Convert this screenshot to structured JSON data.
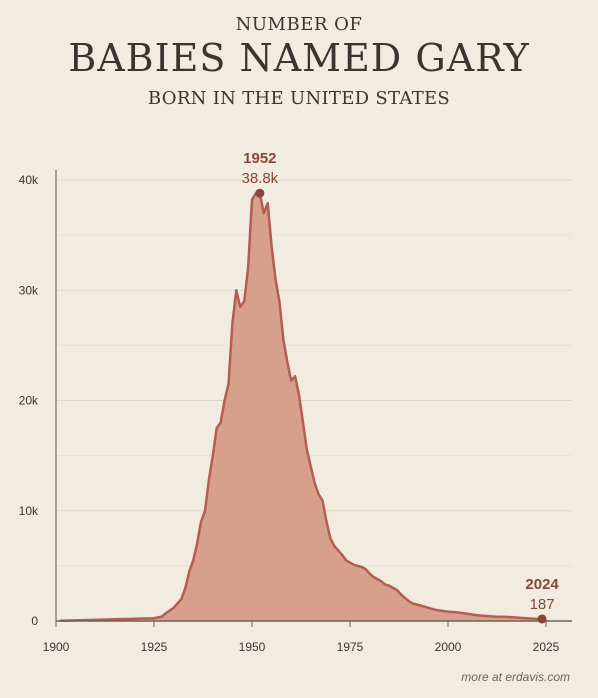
{
  "title": {
    "pre": "NUMBER OF",
    "main": "BABIES NAMED GARY",
    "sub": "BORN IN THE UNITED STATES"
  },
  "credit": "more at erdavis.com",
  "colors": {
    "background": "#f2ebdf",
    "area_fill": "#d7a08c",
    "line": "#b45d50",
    "annotation": "#8a453a",
    "grid": "#ddd5c9"
  },
  "chart_data": {
    "type": "area",
    "title": "NUMBER OF BABIES NAMED GARY BORN IN THE UNITED STATES",
    "xlabel": "",
    "ylabel": "",
    "xlim": [
      1900,
      2030
    ],
    "ylim": [
      0,
      40000
    ],
    "grid": true,
    "x_ticks": [
      1900,
      1925,
      1950,
      1975,
      2000,
      2025
    ],
    "x_tick_labels": [
      "1900",
      "1925",
      "1950",
      "1975",
      "2000",
      "2025"
    ],
    "y_ticks": [
      0,
      10000,
      20000,
      30000,
      40000
    ],
    "y_tick_labels": [
      "0",
      "10k",
      "20k",
      "30k",
      "40k"
    ],
    "series": [
      {
        "x": [
          1901,
          1905,
          1910,
          1915,
          1920,
          1925,
          1927,
          1928,
          1930,
          1932,
          1933,
          1934,
          1935,
          1936,
          1937,
          1938,
          1939,
          1940,
          1941,
          1942,
          1943,
          1944,
          1945,
          1946,
          1947,
          1948,
          1949,
          1950,
          1951,
          1952,
          1953,
          1954,
          1955,
          1956,
          1957,
          1958,
          1959,
          1960,
          1961,
          1962,
          1963,
          1964,
          1965,
          1966,
          1967,
          1968,
          1969,
          1970,
          1971,
          1972,
          1973,
          1974,
          1975,
          1976,
          1977,
          1978,
          1979,
          1980,
          1981,
          1982,
          1983,
          1984,
          1985,
          1986,
          1987,
          1988,
          1989,
          1990,
          1991,
          1992,
          1993,
          1994,
          1995,
          1996,
          1997,
          1998,
          1999,
          2000,
          2002,
          2004,
          2006,
          2008,
          2010,
          2012,
          2014,
          2016,
          2018,
          2020,
          2022,
          2024
        ],
        "y": [
          30,
          50,
          100,
          150,
          200,
          250,
          400,
          700,
          1200,
          2000,
          3000,
          4500,
          5500,
          7000,
          9000,
          10000,
          12800,
          15000,
          17500,
          18000,
          20000,
          21500,
          27000,
          30000,
          28500,
          29000,
          32000,
          38200,
          38800,
          38800,
          37000,
          37900,
          34000,
          31000,
          29000,
          25500,
          23500,
          21800,
          22200,
          20500,
          18000,
          15500,
          14000,
          12500,
          11500,
          10900,
          9000,
          7500,
          6800,
          6400,
          6000,
          5500,
          5300,
          5100,
          5000,
          4900,
          4700,
          4300,
          4000,
          3800,
          3600,
          3300,
          3200,
          3000,
          2800,
          2400,
          2100,
          1800,
          1600,
          1500,
          1400,
          1300,
          1200,
          1100,
          1000,
          950,
          900,
          850,
          800,
          700,
          600,
          500,
          450,
          400,
          380,
          350,
          300,
          250,
          200,
          187
        ]
      }
    ],
    "annotations": [
      {
        "year": "1952",
        "value": "38.8k",
        "x": 1952,
        "y": 38800
      },
      {
        "year": "2024",
        "value": "187",
        "x": 2024,
        "y": 187
      }
    ]
  }
}
